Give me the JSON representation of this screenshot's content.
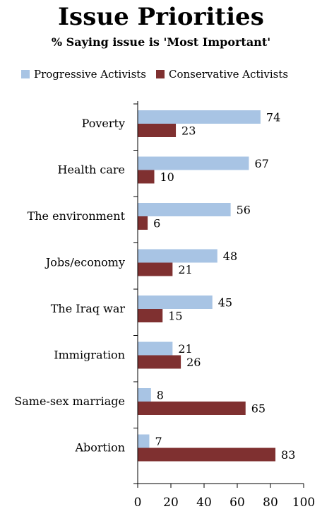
{
  "header": {
    "title": "Issue Priorities",
    "subtitle": "% Saying issue is 'Most Important'"
  },
  "colors": {
    "progressive": "#a8c4e4",
    "conservative": "#7f3030",
    "axis": "#000000"
  },
  "chart_data": {
    "type": "bar",
    "orientation": "horizontal",
    "title": "Issue Priorities",
    "subtitle": "% Saying issue is 'Most Important'",
    "categories": [
      "Poverty",
      "Health care",
      "The environment",
      "Jobs/economy",
      "The Iraq war",
      "Immigration",
      "Same-sex marriage",
      "Abortion"
    ],
    "series": [
      {
        "name": "Progressive Activists",
        "values": [
          74,
          67,
          56,
          48,
          45,
          21,
          8,
          7
        ]
      },
      {
        "name": "Conservative Activists",
        "values": [
          23,
          10,
          6,
          21,
          15,
          26,
          65,
          83
        ]
      }
    ],
    "xlim": [
      0,
      100
    ],
    "xticks": [
      "0",
      "20",
      "40",
      "60",
      "80",
      "100"
    ],
    "legend": "top",
    "grid": false
  }
}
